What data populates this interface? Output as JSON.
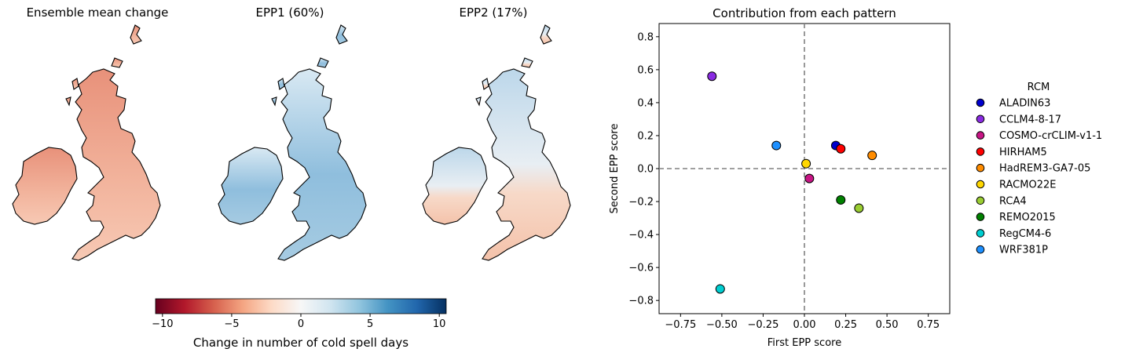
{
  "maps": [
    {
      "title": "Ensemble mean change",
      "fill": "red"
    },
    {
      "title": "EPP1 (60%)",
      "fill": "blue"
    },
    {
      "title": "EPP2 (17%)",
      "fill": "mixed"
    }
  ],
  "colorbar": {
    "label": "Change in number of cold spell days",
    "ticks": [
      -10,
      -5,
      0,
      5,
      10
    ],
    "tick_labels": [
      "−10",
      "−5",
      "0",
      "5",
      "10"
    ],
    "range": [
      -10.5,
      10.5
    ],
    "colormap": "RdBu"
  },
  "chart_data": {
    "type": "scatter",
    "title": "Contribution from each pattern",
    "xlabel": "First EPP score",
    "ylabel": "Second EPP score",
    "xlim": [
      -0.88,
      0.88
    ],
    "ylim": [
      -0.88,
      0.88
    ],
    "xticks": [
      -0.75,
      -0.5,
      -0.25,
      0.0,
      0.25,
      0.5,
      0.75
    ],
    "xtick_labels": [
      "−0.75",
      "−0.50",
      "−0.25",
      "0.00",
      "0.25",
      "0.50",
      "0.75"
    ],
    "yticks": [
      0.8,
      0.6,
      0.4,
      0.2,
      0.0,
      -0.2,
      -0.4,
      -0.6,
      -0.8
    ],
    "ytick_labels": [
      "0.8",
      "0.6",
      "0.4",
      "0.2",
      "0.0",
      "−0.2",
      "−0.4",
      "−0.6",
      "−0.8"
    ],
    "reference_lines": {
      "x": 0,
      "y": 0
    },
    "legend_title": "RCM",
    "legend_position": "right-outside",
    "series": [
      {
        "name": "ALADIN63",
        "color": "#0000cd",
        "x": 0.19,
        "y": 0.14
      },
      {
        "name": "CCLM4-8-17",
        "color": "#8a2be2",
        "x": -0.56,
        "y": 0.56
      },
      {
        "name": "COSMO-crCLIM-v1-1",
        "color": "#c71585",
        "x": 0.03,
        "y": -0.06
      },
      {
        "name": "HIRHAM5",
        "color": "#ff0000",
        "x": 0.22,
        "y": 0.12
      },
      {
        "name": "HadREM3-GA7-05",
        "color": "#ff8c00",
        "x": 0.41,
        "y": 0.08
      },
      {
        "name": "RACMO22E",
        "color": "#ffd700",
        "x": 0.01,
        "y": 0.03
      },
      {
        "name": "RCA4",
        "color": "#9acd32",
        "x": 0.33,
        "y": -0.24
      },
      {
        "name": "REMO2015",
        "color": "#008000",
        "x": 0.22,
        "y": -0.19
      },
      {
        "name": "RegCM4-6",
        "color": "#00ced1",
        "x": -0.51,
        "y": -0.73
      },
      {
        "name": "WRF381P",
        "color": "#1e90ff",
        "x": -0.17,
        "y": 0.14
      }
    ]
  }
}
